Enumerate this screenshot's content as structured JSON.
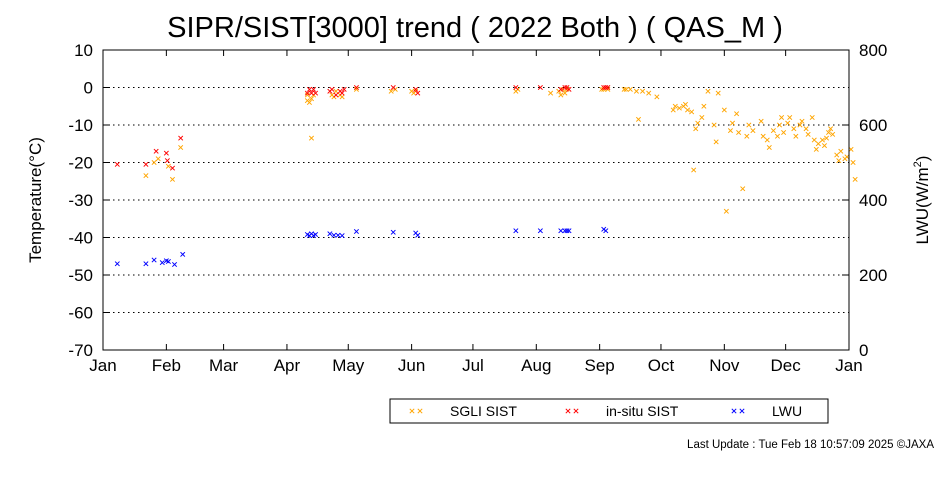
{
  "chart_data": {
    "type": "scatter",
    "title": "SIPR/SIST[3000] trend ( 2022 Both ) ( QAS_M )",
    "ylabel": "Temperature(°C)",
    "y2label_main": "LWU(W/m",
    "y2label_sup": "2",
    "y2label_end": ")",
    "ylim": [
      -70,
      10
    ],
    "y2lim": [
      0,
      800
    ],
    "yticks": [
      10,
      0,
      -10,
      -20,
      -30,
      -40,
      -50,
      -60,
      -70
    ],
    "y2ticks": [
      800,
      600,
      400,
      200,
      0
    ],
    "grid": "horizontal dotted",
    "x_axis_labels": [
      "Jan",
      "Feb",
      "Mar",
      "Apr",
      "May",
      "Jun",
      "Jul",
      "Aug",
      "Sep",
      "Oct",
      "Nov",
      "Dec",
      "Jan"
    ],
    "x_axis_days": [
      0,
      31,
      59,
      90,
      120,
      151,
      181,
      212,
      243,
      273,
      304,
      334,
      365
    ],
    "series": [
      {
        "name": "SGLI SIST",
        "axis": "left",
        "color": "#ffa500",
        "points": [
          [
            21,
            -23.5
          ],
          [
            25,
            -20
          ],
          [
            27,
            -19
          ],
          [
            32,
            -21
          ],
          [
            34,
            -24.5
          ],
          [
            38,
            -16
          ],
          [
            100,
            -2
          ],
          [
            100,
            -3.5
          ],
          [
            101,
            -4
          ],
          [
            102,
            -3
          ],
          [
            102,
            -13.5
          ],
          [
            103,
            -2
          ],
          [
            112,
            -2
          ],
          [
            113,
            -2.5
          ],
          [
            114,
            -1
          ],
          [
            116,
            -2
          ],
          [
            117,
            -2.5
          ],
          [
            124,
            -0.5
          ],
          [
            141,
            -1
          ],
          [
            143,
            -0.5
          ],
          [
            151,
            -1
          ],
          [
            152,
            -1.5
          ],
          [
            153,
            -1
          ],
          [
            202,
            -1
          ],
          [
            203,
            -0.5
          ],
          [
            219,
            -1.5
          ],
          [
            223,
            -1
          ],
          [
            224,
            -2
          ],
          [
            225,
            -0.5
          ],
          [
            226,
            -1.5
          ],
          [
            227,
            -0.5
          ],
          [
            244,
            -0.5
          ],
          [
            245,
            -0.5
          ],
          [
            247,
            -0.5
          ],
          [
            255,
            -0.5
          ],
          [
            256,
            -0.5
          ],
          [
            258,
            -0.5
          ],
          [
            261,
            -1
          ],
          [
            262,
            -8.5
          ],
          [
            264,
            -1
          ],
          [
            267,
            -1.5
          ],
          [
            271,
            -2.5
          ],
          [
            279,
            -6
          ],
          [
            280,
            -5
          ],
          [
            282,
            -5.5
          ],
          [
            284,
            -5
          ],
          [
            285,
            -4.5
          ],
          [
            286,
            -6
          ],
          [
            288,
            -6.5
          ],
          [
            289,
            -22
          ],
          [
            290,
            -11
          ],
          [
            291,
            -9.5
          ],
          [
            293,
            -8
          ],
          [
            294,
            -5
          ],
          [
            296,
            -1
          ],
          [
            299,
            -10
          ],
          [
            300,
            -14.5
          ],
          [
            301,
            -1.5
          ],
          [
            304,
            -6
          ],
          [
            305,
            -33
          ],
          [
            307,
            -11.5
          ],
          [
            308,
            -9.5
          ],
          [
            310,
            -7
          ],
          [
            311,
            -12
          ],
          [
            313,
            -27
          ],
          [
            315,
            -13
          ],
          [
            316,
            -10
          ],
          [
            318,
            -11.5
          ],
          [
            322,
            -9
          ],
          [
            323,
            -13
          ],
          [
            325,
            -14
          ],
          [
            326,
            -16
          ],
          [
            328,
            -11.5
          ],
          [
            330,
            -13
          ],
          [
            331,
            -10
          ],
          [
            332,
            -8
          ],
          [
            333,
            -12
          ],
          [
            335,
            -9.5
          ],
          [
            336,
            -8
          ],
          [
            338,
            -11
          ],
          [
            339,
            -13
          ],
          [
            341,
            -10
          ],
          [
            342,
            -9
          ],
          [
            344,
            -11
          ],
          [
            345,
            -12.5
          ],
          [
            347,
            -8
          ],
          [
            348,
            -14
          ],
          [
            349,
            -16.5
          ],
          [
            350,
            -15
          ],
          [
            352,
            -14
          ],
          [
            353,
            -15.5
          ],
          [
            354,
            -13.5
          ],
          [
            355,
            -12
          ],
          [
            356,
            -11
          ],
          [
            357,
            -12.5
          ],
          [
            359,
            -18
          ],
          [
            360,
            -19.5
          ],
          [
            361,
            -17
          ],
          [
            363,
            -19
          ],
          [
            364,
            -18.5
          ],
          [
            366,
            -16.5
          ],
          [
            367,
            -20
          ],
          [
            368,
            -24.5
          ]
        ]
      },
      {
        "name": "in-situ SIST",
        "axis": "left",
        "color": "#ff0000",
        "points": [
          [
            7,
            -20.5
          ],
          [
            21,
            -20.5
          ],
          [
            26,
            -17
          ],
          [
            31,
            -17.5
          ],
          [
            31.5,
            -19.5
          ],
          [
            34,
            -21.5
          ],
          [
            38,
            -13.5
          ],
          [
            100,
            -1.5
          ],
          [
            101,
            -0.5
          ],
          [
            102,
            -1.5
          ],
          [
            103,
            -0.5
          ],
          [
            104,
            -1.5
          ],
          [
            111,
            -1
          ],
          [
            112,
            -0.5
          ],
          [
            114,
            -2
          ],
          [
            116,
            -1
          ],
          [
            117,
            -1.5
          ],
          [
            118,
            -0.5
          ],
          [
            124,
            0
          ],
          [
            142,
            0
          ],
          [
            153,
            -0.5
          ],
          [
            154,
            -1.5
          ],
          [
            202,
            0
          ],
          [
            214,
            0
          ],
          [
            224,
            -0.5
          ],
          [
            226,
            0
          ],
          [
            227,
            0
          ],
          [
            228,
            -0.5
          ],
          [
            245,
            0
          ],
          [
            246,
            0
          ],
          [
            247,
            0
          ]
        ]
      },
      {
        "name": "LWU",
        "axis": "right",
        "color": "#0000ff",
        "points": [
          [
            7,
            230
          ],
          [
            21,
            230
          ],
          [
            25,
            240
          ],
          [
            29,
            233
          ],
          [
            31,
            238
          ],
          [
            32,
            236
          ],
          [
            35,
            228
          ],
          [
            39,
            255
          ],
          [
            100,
            308
          ],
          [
            101,
            305
          ],
          [
            102,
            310
          ],
          [
            103,
            305
          ],
          [
            104,
            308
          ],
          [
            111,
            310
          ],
          [
            113,
            306
          ],
          [
            115,
            306
          ],
          [
            117,
            305
          ],
          [
            124,
            316
          ],
          [
            142,
            314
          ],
          [
            153,
            312
          ],
          [
            154,
            306
          ],
          [
            202,
            318
          ],
          [
            214,
            318
          ],
          [
            224,
            318
          ],
          [
            226,
            318
          ],
          [
            227,
            318
          ],
          [
            228,
            318
          ],
          [
            245,
            322
          ],
          [
            246,
            318
          ]
        ]
      }
    ],
    "legend": {
      "position": "bottom-right",
      "entries": [
        {
          "label": "SGLI SIST",
          "color": "#ffa500"
        },
        {
          "label": "in-situ SIST",
          "color": "#ff0000"
        },
        {
          "label": "LWU",
          "color": "#0000ff"
        }
      ]
    }
  },
  "footer": "Last Update : Tue Feb 18 10:57:09 2025  ©JAXA"
}
